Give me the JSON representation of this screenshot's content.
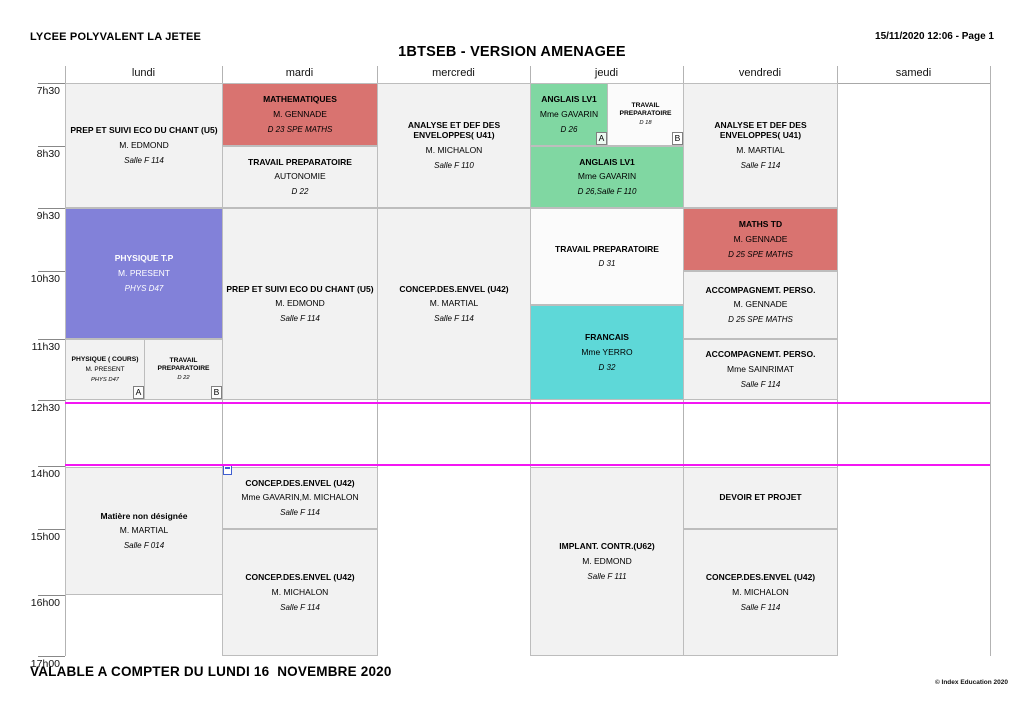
{
  "header": {
    "school": "LYCEE POLYVALENT LA JETEE",
    "title": "1BTSEB - VERSION AMENAGEE",
    "date_page": "15/11/2020 12:06 - Page 1"
  },
  "footer": {
    "validity": "VALABLE A COMPTER DU LUNDI 16  NOVEMBRE 2020",
    "copyright": "© Index Education 2020"
  },
  "days": [
    "lundi",
    "mardi",
    "mercredi",
    "jeudi",
    "vendredi",
    "samedi"
  ],
  "times": [
    "7h30",
    "8h30",
    "9h30",
    "10h30",
    "11h30",
    "12h30",
    "14h00",
    "15h00",
    "16h00",
    "17h00"
  ],
  "colors": {
    "gray": "#f2f2f2",
    "white": "#fbfbfb",
    "red": "#d97370",
    "green": "#80d7a2",
    "purple": "#8281d9",
    "teal": "#5ed8d8",
    "magenta": "#f316f3"
  },
  "blocks": [
    {
      "day": "lundi",
      "start": "7h30",
      "end": "9h30",
      "color": "gray",
      "lines": [
        {
          "t": "PREP ET SUIVI ECO DU CHANT (U5)",
          "s": "b"
        },
        {
          "t": "M. EDMOND",
          "s": "n"
        },
        {
          "t": "Salle F 114",
          "s": "i"
        }
      ]
    },
    {
      "day": "lundi",
      "start": "9h30",
      "end": "11h30",
      "color": "purple",
      "whitetext": true,
      "lines": [
        {
          "t": "PHYSIQUE T.P",
          "s": "b"
        },
        {
          "t": "M. PRESENT",
          "s": "n"
        },
        {
          "t": "PHYS D47",
          "s": "i"
        }
      ]
    },
    {
      "day": "lundi",
      "start": "11h30",
      "end": "12h30",
      "color": "gray",
      "half": "left",
      "small": true,
      "marker": "A",
      "lines": [
        {
          "t": "PHYSIQUE ( COURS)",
          "s": "b"
        },
        {
          "t": "M. PRESENT",
          "s": "n"
        },
        {
          "t": "PHYS D47",
          "s": "i"
        }
      ]
    },
    {
      "day": "lundi",
      "start": "11h30",
      "end": "12h30",
      "color": "gray",
      "half": "right",
      "small": true,
      "marker": "B",
      "lines": [
        {
          "t": "TRAVAIL PREPARATOIRE",
          "s": "b"
        },
        {
          "t": "D 22",
          "s": "i"
        }
      ]
    },
    {
      "day": "lundi",
      "start": "14h00",
      "end": "16h00",
      "color": "gray",
      "lines": [
        {
          "t": "Matière non désignée",
          "s": "b"
        },
        {
          "t": "M. MARTIAL",
          "s": "n"
        },
        {
          "t": "Salle F 014",
          "s": "i"
        }
      ]
    },
    {
      "day": "mardi",
      "start": "7h30",
      "end": "8h30",
      "color": "red",
      "lines": [
        {
          "t": "MATHEMATIQUES",
          "s": "b"
        },
        {
          "t": "M. GENNADE",
          "s": "n"
        },
        {
          "t": "D 23 SPE MATHS",
          "s": "i"
        }
      ]
    },
    {
      "day": "mardi",
      "start": "8h30",
      "end": "9h30",
      "color": "gray",
      "lines": [
        {
          "t": "TRAVAIL PREPARATOIRE",
          "s": "b"
        },
        {
          "t": "AUTONOMIE",
          "s": "n"
        },
        {
          "t": "D 22",
          "s": "i"
        }
      ]
    },
    {
      "day": "mardi",
      "start": "9h30",
      "end": "12h30",
      "color": "gray",
      "lines": [
        {
          "t": "PREP ET SUIVI ECO DU CHANT (U5)",
          "s": "b"
        },
        {
          "t": "M. EDMOND",
          "s": "n"
        },
        {
          "t": "Salle F 114",
          "s": "i"
        }
      ]
    },
    {
      "day": "mardi",
      "start": "14h00",
      "end": "15h00",
      "color": "gray",
      "icon": "note-icon",
      "lines": [
        {
          "t": "CONCEP.DES.ENVEL (U42)",
          "s": "b"
        },
        {
          "t": "Mme GAVARIN,M. MICHALON",
          "s": "n"
        },
        {
          "t": "Salle F 114",
          "s": "i"
        }
      ]
    },
    {
      "day": "mardi",
      "start": "15h00",
      "end": "17h00",
      "color": "gray",
      "lines": [
        {
          "t": "CONCEP.DES.ENVEL (U42)",
          "s": "b"
        },
        {
          "t": "M. MICHALON",
          "s": "n"
        },
        {
          "t": "Salle F 114",
          "s": "i"
        }
      ]
    },
    {
      "day": "mercredi",
      "start": "7h30",
      "end": "9h30",
      "color": "gray",
      "lines": [
        {
          "t": "ANALYSE ET DEF DES ENVELOPPES( U41)",
          "s": "b"
        },
        {
          "t": "M. MICHALON",
          "s": "n"
        },
        {
          "t": "Salle F 110",
          "s": "i"
        }
      ]
    },
    {
      "day": "mercredi",
      "start": "9h30",
      "end": "12h30",
      "color": "gray",
      "lines": [
        {
          "t": "CONCEP.DES.ENVEL (U42)",
          "s": "b"
        },
        {
          "t": "M. MARTIAL",
          "s": "n"
        },
        {
          "t": "Salle F 114",
          "s": "i"
        }
      ]
    },
    {
      "day": "jeudi",
      "start": "7h30",
      "end": "8h30",
      "color": "green",
      "half": "left",
      "marker": "A",
      "lines": [
        {
          "t": "ANGLAIS LV1",
          "s": "b"
        },
        {
          "t": "Mme GAVARIN",
          "s": "n"
        },
        {
          "t": "D 26",
          "s": "i"
        }
      ]
    },
    {
      "day": "jeudi",
      "start": "7h30",
      "end": "8h30",
      "color": "white",
      "half": "right",
      "small": true,
      "marker": "B",
      "lines": [
        {
          "t": "TRAVAIL PREPARATOIRE",
          "s": "b"
        },
        {
          "t": "D 18",
          "s": "i"
        }
      ]
    },
    {
      "day": "jeudi",
      "start": "8h30",
      "end": "9h30",
      "color": "green",
      "lines": [
        {
          "t": "ANGLAIS LV1",
          "s": "b"
        },
        {
          "t": "Mme GAVARIN",
          "s": "n"
        },
        {
          "t": "D 26,Salle F 110",
          "s": "i"
        }
      ]
    },
    {
      "day": "jeudi",
      "start": "9h30",
      "end": "11h00",
      "color": "white",
      "lines": [
        {
          "t": "TRAVAIL PREPARATOIRE",
          "s": "b"
        },
        {
          "t": "D 31",
          "s": "i"
        }
      ]
    },
    {
      "day": "jeudi",
      "start": "11h00",
      "end": "12h30",
      "color": "teal",
      "lines": [
        {
          "t": "FRANCAIS",
          "s": "b"
        },
        {
          "t": "Mme YERRO",
          "s": "n"
        },
        {
          "t": "D 32",
          "s": "i"
        }
      ]
    },
    {
      "day": "jeudi",
      "start": "14h00",
      "end": "17h00",
      "color": "gray",
      "lines": [
        {
          "t": "IMPLANT. CONTR.(U62)",
          "s": "b"
        },
        {
          "t": "M. EDMOND",
          "s": "n"
        },
        {
          "t": "Salle F 111",
          "s": "i"
        }
      ]
    },
    {
      "day": "vendredi",
      "start": "7h30",
      "end": "9h30",
      "color": "gray",
      "lines": [
        {
          "t": "ANALYSE ET DEF DES ENVELOPPES( U41)",
          "s": "b"
        },
        {
          "t": "M. MARTIAL",
          "s": "n"
        },
        {
          "t": "Salle F 114",
          "s": "i"
        }
      ]
    },
    {
      "day": "vendredi",
      "start": "9h30",
      "end": "10h30",
      "color": "red",
      "lines": [
        {
          "t": "MATHS TD",
          "s": "b"
        },
        {
          "t": "M. GENNADE",
          "s": "n"
        },
        {
          "t": "D 25 SPE MATHS",
          "s": "i"
        }
      ]
    },
    {
      "day": "vendredi",
      "start": "10h30",
      "end": "11h30",
      "color": "gray",
      "lines": [
        {
          "t": "ACCOMPAGNEMT. PERSO.",
          "s": "b"
        },
        {
          "t": "M. GENNADE",
          "s": "n"
        },
        {
          "t": "D 25 SPE MATHS",
          "s": "i"
        }
      ]
    },
    {
      "day": "vendredi",
      "start": "11h30",
      "end": "12h30",
      "color": "gray",
      "lines": [
        {
          "t": "ACCOMPAGNEMT. PERSO.",
          "s": "b"
        },
        {
          "t": "Mme SAINRIMAT",
          "s": "n"
        },
        {
          "t": "Salle F 114",
          "s": "i"
        }
      ]
    },
    {
      "day": "vendredi",
      "start": "14h00",
      "end": "15h00",
      "color": "gray",
      "lines": [
        {
          "t": "DEVOIR ET PROJET",
          "s": "b"
        }
      ]
    },
    {
      "day": "vendredi",
      "start": "15h00",
      "end": "17h00",
      "color": "gray",
      "lines": [
        {
          "t": "CONCEP.DES.ENVEL (U42)",
          "s": "b"
        },
        {
          "t": "M. MICHALON",
          "s": "n"
        },
        {
          "t": "Salle F 114",
          "s": "i"
        }
      ]
    }
  ]
}
